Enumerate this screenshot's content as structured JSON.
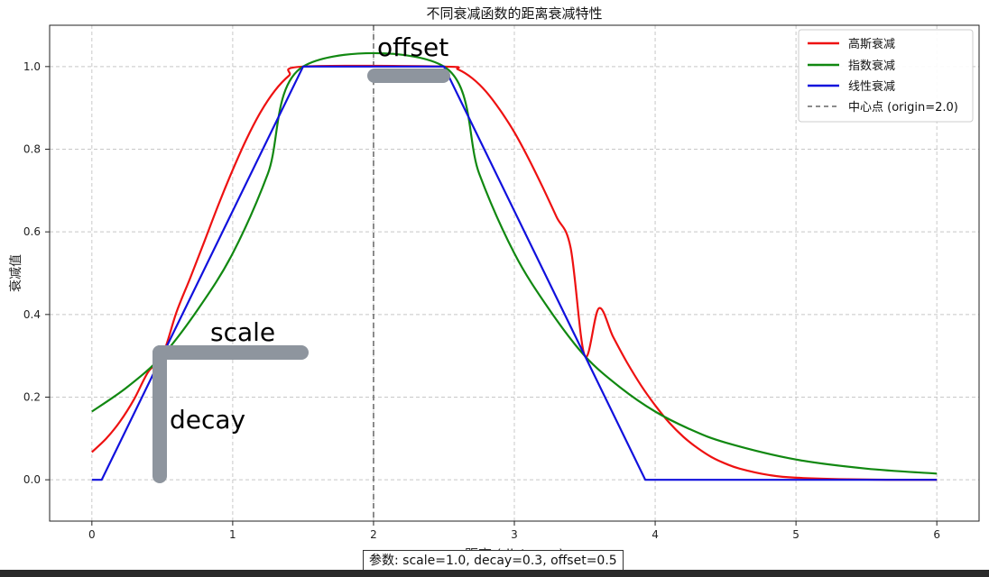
{
  "chart_data": {
    "type": "line",
    "title": "不同衰减函数的距离衰减特性",
    "xlabel": "距离 (distance)",
    "ylabel": "衰减值",
    "xlim": [
      -0.3,
      6.3
    ],
    "ylim": [
      -0.1,
      1.1
    ],
    "x_ticks": [
      "0",
      "1",
      "2",
      "3",
      "4",
      "5",
      "6"
    ],
    "y_ticks": [
      "0.0",
      "0.2",
      "0.4",
      "0.6",
      "0.8",
      "1.0"
    ],
    "grid": true,
    "legend_position": "top-right",
    "series": [
      {
        "name": "高斯衰减",
        "color": "#ee1111",
        "x": [
          0,
          0.1,
          0.2,
          0.3,
          0.4,
          0.5,
          0.6,
          0.7,
          0.8,
          0.9,
          1.0,
          1.1,
          1.2,
          1.3,
          1.4,
          1.5,
          2.5,
          2.6,
          2.7,
          2.8,
          2.9,
          3.0,
          3.1,
          3.2,
          3.3,
          3.4,
          3.5,
          3.6,
          3.7,
          3.8,
          3.9,
          4.0,
          4.1,
          4.2,
          4.3,
          4.4,
          4.5,
          4.6,
          4.8,
          5.0,
          5.5,
          6.0
        ],
        "y": [
          0.067,
          0.099,
          0.141,
          0.195,
          0.261,
          0.3,
          0.405,
          0.49,
          0.578,
          0.667,
          0.75,
          0.826,
          0.891,
          0.942,
          0.978,
          1.0,
          1.0,
          0.993,
          0.972,
          0.939,
          0.894,
          0.841,
          0.778,
          0.709,
          0.636,
          0.561,
          0.3,
          0.415,
          0.347,
          0.284,
          0.228,
          0.18,
          0.138,
          0.104,
          0.077,
          0.055,
          0.039,
          0.027,
          0.012,
          0.005,
          0.0005,
          0.0
        ],
        "values": [
          0.067,
          0.099,
          0.141,
          0.195,
          0.261,
          0.3,
          0.405,
          0.49,
          0.578,
          0.667,
          0.75,
          0.826,
          0.891,
          0.942,
          0.978,
          1.0,
          1.0,
          0.993,
          0.972,
          0.939,
          0.894,
          0.841,
          0.778,
          0.709,
          0.636,
          0.561,
          0.3,
          0.415,
          0.347,
          0.284,
          0.228,
          0.18,
          0.138,
          0.104,
          0.077,
          0.055,
          0.039,
          0.027,
          0.012,
          0.005,
          0.0005,
          0.0
        ]
      },
      {
        "name": "指数衰减",
        "color": "#118811",
        "x": [
          0,
          0.25,
          0.5,
          0.75,
          1.0,
          1.25,
          1.5,
          2.5,
          2.75,
          3.0,
          3.25,
          3.5,
          3.75,
          4.0,
          4.25,
          4.5,
          5.0,
          5.5,
          6.0
        ],
        "y": [
          0.165,
          0.224,
          0.3,
          0.411,
          0.548,
          0.741,
          1.0,
          1.0,
          0.741,
          0.548,
          0.411,
          0.3,
          0.224,
          0.165,
          0.122,
          0.09,
          0.049,
          0.027,
          0.015
        ],
        "values": [
          0.165,
          0.224,
          0.3,
          0.411,
          0.548,
          0.741,
          1.0,
          1.0,
          0.741,
          0.548,
          0.411,
          0.3,
          0.224,
          0.165,
          0.122,
          0.09,
          0.049,
          0.027,
          0.015
        ]
      },
      {
        "name": "线性衰减",
        "color": "#1111dd",
        "x": [
          0,
          0.07,
          1.5,
          2.5,
          3.93,
          6.0
        ],
        "y": [
          0.0,
          0.0,
          1.0,
          1.0,
          0.0,
          0.0
        ],
        "values": [
          0.0,
          0.0,
          1.0,
          1.0,
          0.0,
          0.0
        ]
      }
    ],
    "reference_line": {
      "name": "中心点 (origin=2.0)",
      "x": 2.0,
      "color": "#666666",
      "style": "dashed"
    },
    "annotations": [
      {
        "text": "offset"
      },
      {
        "text": "scale"
      },
      {
        "text": "decay"
      }
    ]
  },
  "footer": {
    "params": "参数: scale=1.0, decay=0.3, offset=0.5"
  }
}
